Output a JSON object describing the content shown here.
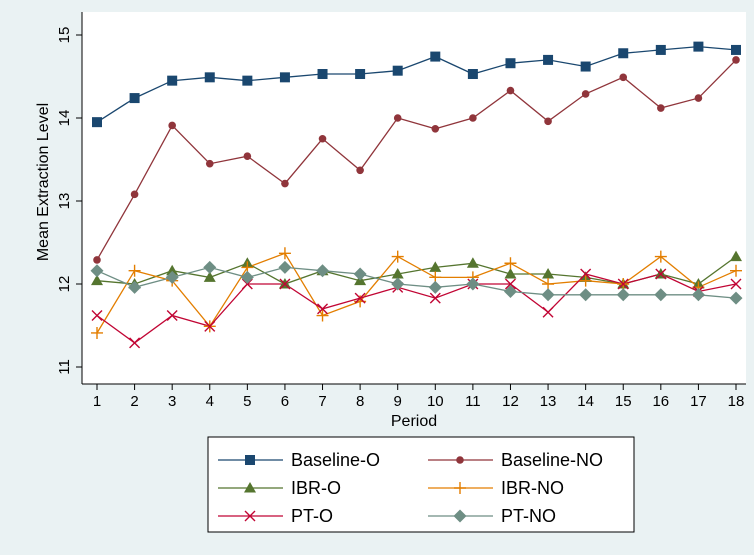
{
  "chart_data": {
    "type": "line",
    "xlabel": "Period",
    "ylabel": "Mean Extraction Level",
    "x": [
      1,
      2,
      3,
      4,
      5,
      6,
      7,
      8,
      9,
      10,
      11,
      12,
      13,
      14,
      15,
      16,
      17,
      18
    ],
    "xlim": [
      1,
      18
    ],
    "ylim": [
      11,
      15
    ],
    "y_ticks": [
      11,
      12,
      13,
      14,
      15
    ],
    "legend_position": "bottom",
    "grid": false,
    "series": [
      {
        "name": "Baseline-O",
        "color": "#1a476f",
        "marker": "square",
        "values": [
          13.95,
          14.24,
          14.45,
          14.49,
          14.45,
          14.49,
          14.53,
          14.53,
          14.57,
          14.74,
          14.53,
          14.66,
          14.7,
          14.62,
          14.78,
          14.82,
          14.86,
          14.82
        ]
      },
      {
        "name": "Baseline-NO",
        "color": "#90353b",
        "marker": "circle",
        "values": [
          12.29,
          13.08,
          13.91,
          13.45,
          13.54,
          13.21,
          13.75,
          13.37,
          14.0,
          13.87,
          14.0,
          14.33,
          13.96,
          14.29,
          14.49,
          14.12,
          14.24,
          14.7
        ]
      },
      {
        "name": "IBR-O",
        "color": "#55752f",
        "marker": "triangle",
        "values": [
          12.04,
          12.0,
          12.16,
          12.08,
          12.25,
          12.0,
          12.16,
          12.04,
          12.12,
          12.2,
          12.25,
          12.12,
          12.12,
          12.08,
          12.0,
          12.12,
          12.0,
          12.33
        ]
      },
      {
        "name": "IBR-NO",
        "color": "#e37e00",
        "marker": "plus",
        "values": [
          11.41,
          12.16,
          12.04,
          11.49,
          12.2,
          12.37,
          11.62,
          11.79,
          12.33,
          12.08,
          12.08,
          12.25,
          12.0,
          12.04,
          12.0,
          12.33,
          11.96,
          12.16
        ]
      },
      {
        "name": "PT-O",
        "color": "#c10534",
        "marker": "x",
        "values": [
          11.62,
          11.29,
          11.62,
          11.49,
          12.0,
          12.0,
          11.7,
          11.83,
          11.96,
          11.83,
          12.0,
          12.0,
          11.66,
          12.12,
          12.0,
          12.12,
          11.91,
          12.0
        ]
      },
      {
        "name": "PT-NO",
        "color": "#6e8e84",
        "marker": "diamond",
        "values": [
          12.16,
          11.96,
          12.08,
          12.2,
          12.08,
          12.2,
          12.16,
          12.12,
          12.0,
          11.96,
          12.0,
          11.91,
          11.87,
          11.87,
          11.87,
          11.87,
          11.87,
          11.83
        ]
      }
    ]
  }
}
